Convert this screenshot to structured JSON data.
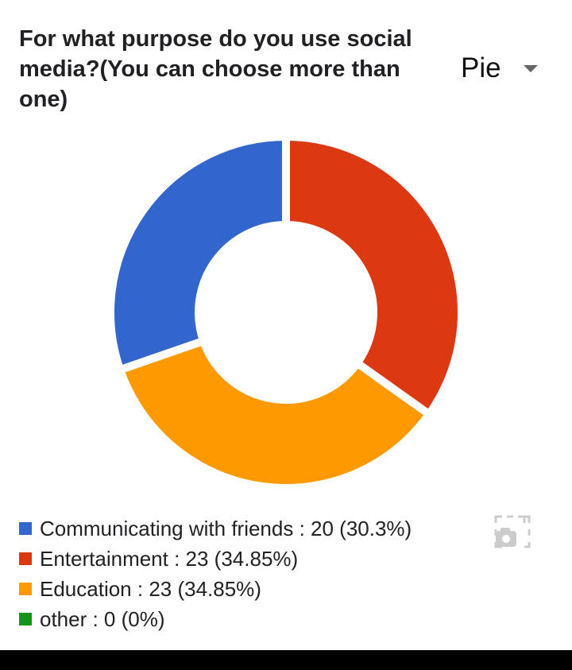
{
  "title": "For what purpose do you use social media?(You can choose more than one)",
  "chart_type_selector": {
    "label": "Pie"
  },
  "chart_data": {
    "type": "pie",
    "style": "donut",
    "title": "For what purpose do you use social media?(You can choose more than one)",
    "legend_position": "bottom",
    "slices": [
      {
        "label": "Communicating with friends",
        "value": 20,
        "percent": 30.3,
        "color": "#3366cc",
        "legend_text": "Communicating with friends : 20 (30.3%)"
      },
      {
        "label": "Entertainment",
        "value": 23,
        "percent": 34.85,
        "color": "#dc3912",
        "legend_text": "Entertainment : 23 (34.85%)"
      },
      {
        "label": "Education",
        "value": 23,
        "percent": 34.85,
        "color": "#ff9900",
        "legend_text": "Education : 23 (34.85%)"
      },
      {
        "label": "other",
        "value": 0,
        "percent": 0,
        "color": "#109618",
        "legend_text": "other : 0 (0%)"
      }
    ],
    "draw_order_clockwise_from_top": [
      "Entertainment",
      "Education",
      "Communicating with friends"
    ]
  },
  "icons": {
    "chart_type_dropdown": "caret-down-icon",
    "screenshot": "camera-icon"
  }
}
